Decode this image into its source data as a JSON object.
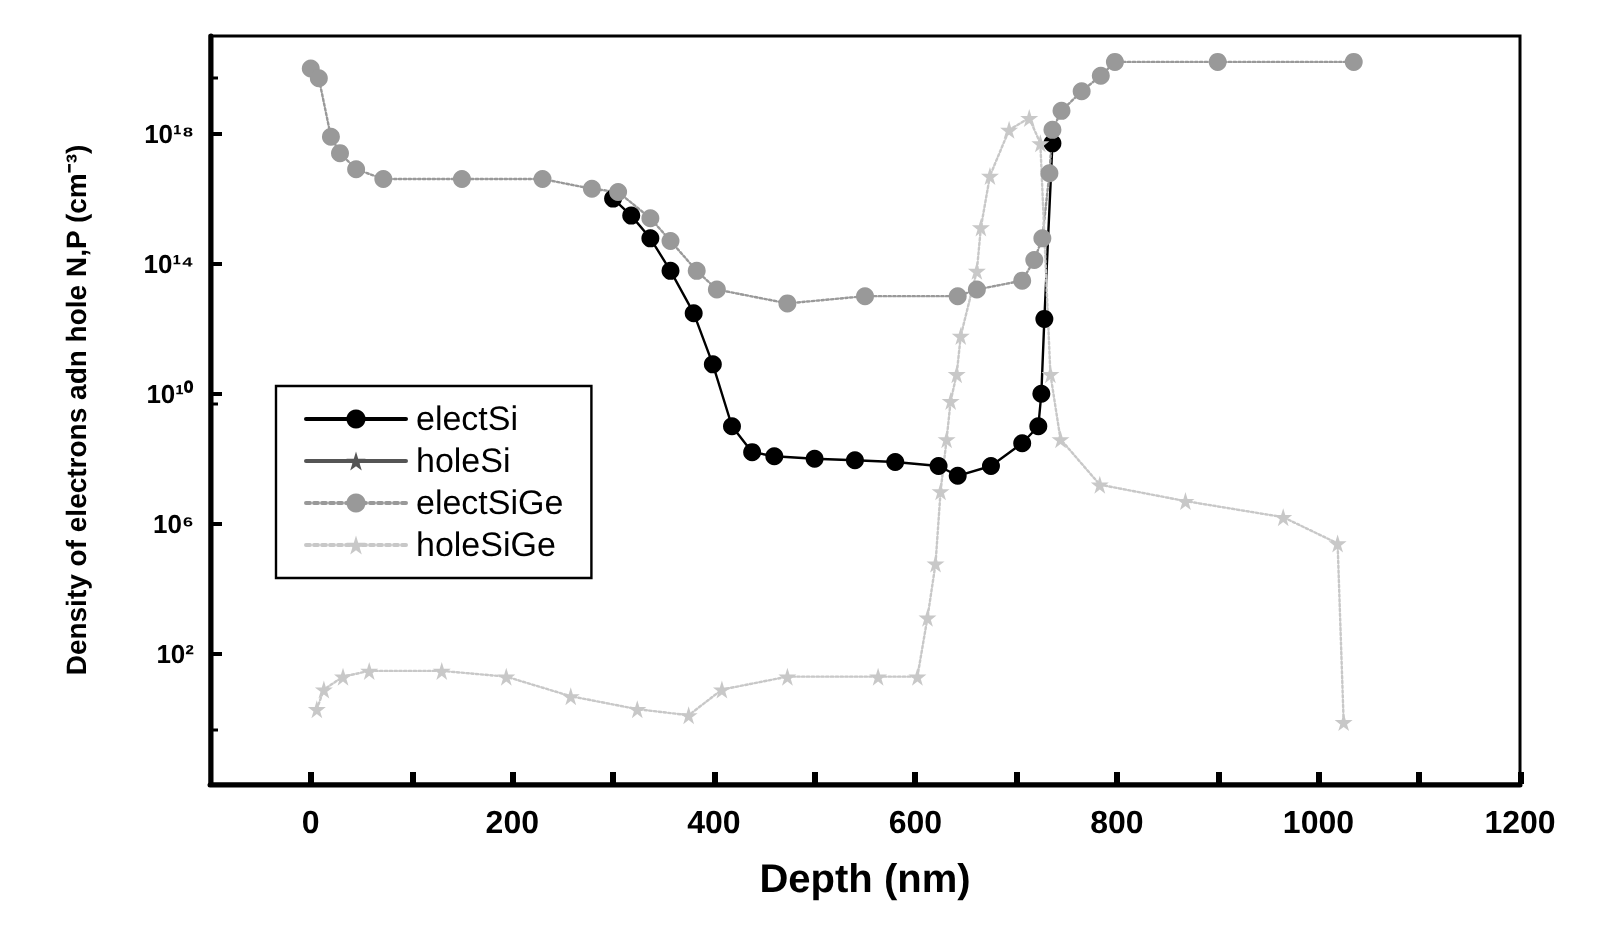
{
  "chart_data": {
    "type": "line",
    "xlabel": "Depth (nm)",
    "ylabel": "Density of electrons adn hole N,P (cm⁻³)",
    "xlim": [
      -100,
      1200
    ],
    "xticks": [
      0,
      {
        "value": 100,
        "label": null
      },
      200,
      {
        "value": 300,
        "label": null
      },
      400,
      {
        "value": 500,
        "label": null
      },
      600,
      {
        "value": 700,
        "label": null
      },
      800,
      {
        "value": 900,
        "label": null
      },
      1000,
      {
        "value": 1100,
        "label": null
      },
      1200
    ],
    "ylim": [
      0.01,
      1e+21
    ],
    "yticks": [
      {
        "value": 100,
        "label": "10²"
      },
      {
        "value": 1000000.0,
        "label": "10⁶"
      },
      {
        "value": 10000000000.0,
        "label": "10¹⁰"
      },
      {
        "value": 100000000000000.0,
        "label": "10¹⁴"
      },
      {
        "value": 1e+18,
        "label": "10¹⁸"
      }
    ],
    "log": "y",
    "grid": false,
    "legend": "left",
    "series": [
      {
        "name": "electSi",
        "color": "#000000",
        "marker": "circle",
        "line_style": "solid",
        "x": [
          300,
          318,
          337,
          357,
          380,
          399,
          418,
          438,
          460,
          500,
          540,
          580,
          623,
          642,
          675,
          706,
          722,
          725,
          728,
          736
        ],
        "values": [
          1e+16,
          3000000000000000.0,
          600000000000000.0,
          60000000000000.0,
          3000000000000.0,
          80000000000.0,
          1000000000.0,
          160000000.0,
          120000000.0,
          100000000.0,
          90000000.0,
          80000000.0,
          60000000.0,
          30000000.0,
          60000000.0,
          300000000.0,
          1000000000.0,
          10000000000.0,
          2000000000000.0,
          5e+17
        ]
      },
      {
        "name": "holeSi",
        "color": "#555555",
        "marker": "star",
        "line_style": "solid"
      },
      {
        "name": "electSiGe",
        "color": "#999999",
        "marker": "circle",
        "line_style": "dotted",
        "x": [
          0,
          8,
          20,
          29,
          45,
          72,
          150,
          230,
          279,
          305,
          337,
          357,
          383,
          403,
          473,
          550,
          642,
          661,
          706,
          718,
          726,
          733,
          736,
          745,
          765,
          784,
          798,
          900,
          1035
        ],
        "values": [
          1e+20,
          5e+19,
          8e+17,
          2.5e+17,
          8e+16,
          4e+16,
          4e+16,
          4e+16,
          2e+16,
          1.6e+16,
          2500000000000000.0,
          500000000000000.0,
          60000000000000.0,
          16000000000000.0,
          6000000000000.0,
          10000000000000.0,
          10000000000000.0,
          16000000000000.0,
          30000000000000.0,
          130000000000000.0,
          600000000000000.0,
          6e+16,
          1.3e+18,
          5e+18,
          2e+19,
          6e+19,
          1.6e+20,
          1.6e+20,
          1.6e+20
        ]
      },
      {
        "name": "holeSiGe",
        "color": "#c8c8c8",
        "marker": "star",
        "line_style": "dotted",
        "x": [
          6,
          13,
          32,
          58,
          130,
          194,
          258,
          324,
          375,
          408,
          473,
          563,
          602,
          612,
          620,
          625,
          631,
          635,
          641,
          645,
          661,
          665,
          674,
          693,
          713,
          724,
          734,
          744,
          783,
          868,
          965,
          1019,
          1025
        ],
        "values": [
          2,
          8,
          20,
          30,
          30,
          20,
          5,
          2,
          1.3,
          8,
          20,
          20,
          20,
          1300,
          60000.0,
          10000000.0,
          400000000.0,
          6000000000.0,
          40000000000.0,
          600000000000.0,
          60000000000000.0,
          1300000000000000.0,
          5e+16,
          1.3e+18,
          3e+18,
          5e+17,
          40000000000.0,
          400000000.0,
          16000000.0,
          5000000.0,
          1600000.0,
          250000.0,
          0.8
        ]
      }
    ]
  }
}
